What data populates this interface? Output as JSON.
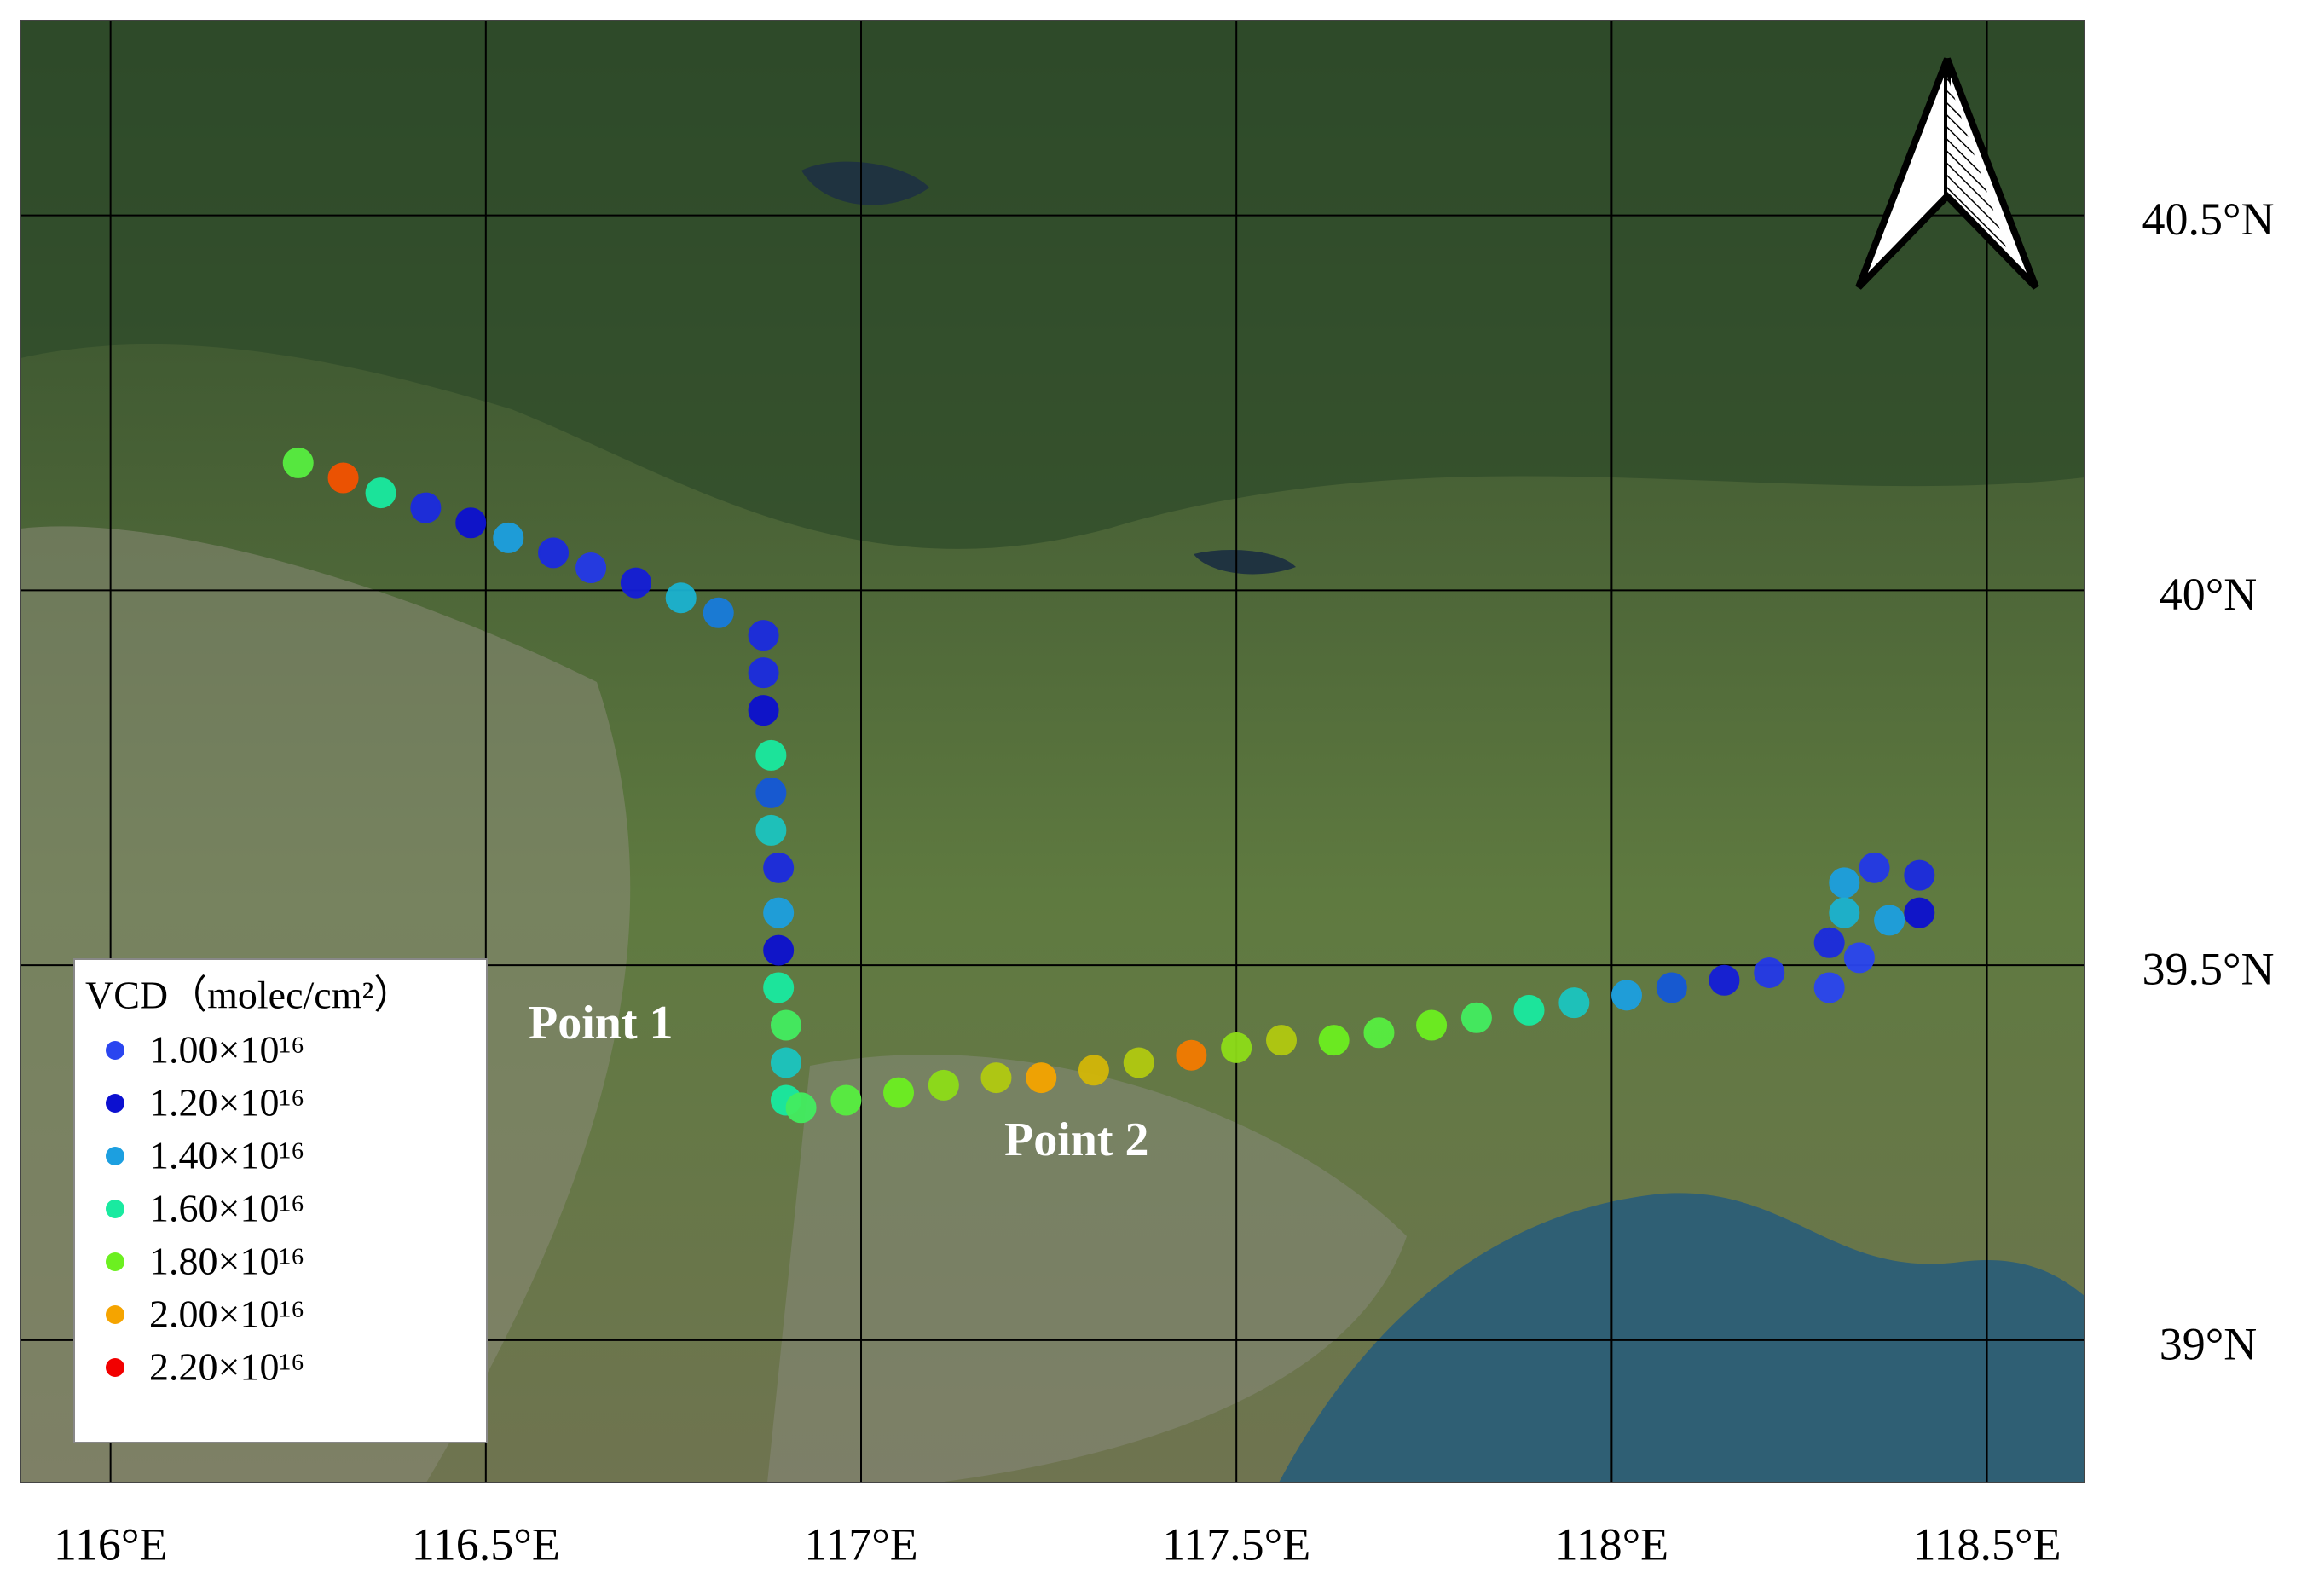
{
  "chart_data": {
    "type": "scatter",
    "x": [
      116.25,
      116.31,
      116.36,
      116.42,
      116.48,
      116.53,
      116.59,
      116.64,
      116.7,
      116.76,
      116.81,
      116.87,
      116.87,
      116.87,
      116.88,
      116.88,
      116.88,
      116.89,
      116.89,
      116.89,
      116.89,
      116.9,
      116.9,
      116.9,
      116.92,
      116.98,
      117.05,
      117.11,
      117.18,
      117.24,
      117.31,
      117.37,
      117.44,
      117.5,
      117.56,
      117.63,
      117.69,
      117.76,
      117.82,
      117.89,
      117.95,
      118.02,
      118.08,
      118.15,
      118.21,
      118.29,
      118.29,
      118.33,
      118.31,
      118.31,
      118.37,
      118.41,
      118.41,
      118.35
    ],
    "y": [
      40.17,
      40.15,
      40.13,
      40.11,
      40.09,
      40.07,
      40.05,
      40.03,
      40.01,
      39.99,
      39.97,
      39.94,
      39.89,
      39.84,
      39.78,
      39.73,
      39.68,
      39.63,
      39.57,
      39.52,
      39.47,
      39.42,
      39.37,
      39.32,
      39.31,
      39.32,
      39.33,
      39.34,
      39.35,
      39.35,
      39.36,
      39.37,
      39.38,
      39.39,
      39.4,
      39.4,
      39.41,
      39.42,
      39.43,
      39.44,
      39.45,
      39.46,
      39.47,
      39.48,
      39.49,
      39.53,
      39.47,
      39.51,
      39.61,
      39.57,
      39.56,
      39.57,
      39.62,
      39.63
    ],
    "values": [
      1.75e+16,
      2.1e+16,
      1.6e+16,
      1.1e+16,
      1.2e+16,
      1.4e+16,
      1.1e+16,
      1.05e+16,
      1.15e+16,
      1.45e+16,
      1.35e+16,
      1.1e+16,
      1.1e+16,
      1.2e+16,
      1.6e+16,
      1.3e+16,
      1.5e+16,
      1.1e+16,
      1.4e+16,
      1.2e+16,
      1.6e+16,
      1.7e+16,
      1.5e+16,
      1.6e+16,
      1.7e+16,
      1.75e+16,
      1.8e+16,
      1.85e+16,
      1.9e+16,
      2e+16,
      1.95e+16,
      1.9e+16,
      2.05e+16,
      1.85e+16,
      1.9e+16,
      1.8e+16,
      1.75e+16,
      1.8e+16,
      1.7e+16,
      1.6e+16,
      1.5e+16,
      1.4e+16,
      1.3e+16,
      1.15e+16,
      1.05e+16,
      1.1e+16,
      1e+16,
      1e+16,
      1.4e+16,
      1.45e+16,
      1.4e+16,
      1.2e+16,
      1.1e+16,
      1.05e+16
    ],
    "xlim": [
      115.88,
      118.63
    ],
    "ylim": [
      38.81,
      40.76
    ],
    "xticks": [
      {
        "value": 116,
        "label": "116°E"
      },
      {
        "value": 116.5,
        "label": "116.5°E"
      },
      {
        "value": 117,
        "label": "117°E"
      },
      {
        "value": 117.5,
        "label": "117.5°E"
      },
      {
        "value": 118,
        "label": "118°E"
      },
      {
        "value": 118.5,
        "label": "118.5°E"
      }
    ],
    "yticks": [
      {
        "value": 39,
        "label": "39°N"
      },
      {
        "value": 39.5,
        "label": "39.5°N"
      },
      {
        "value": 40,
        "label": "40°N"
      },
      {
        "value": 40.5,
        "label": "40.5°N"
      }
    ],
    "grid": true,
    "legend_title": "VCD（molec/cm²）",
    "legend": [
      {
        "value": 1e+16,
        "label": "1.00×10¹⁶",
        "color": "#2a45f0"
      },
      {
        "value": 1.2e+16,
        "label": "1.20×10¹⁶",
        "color": "#0c10d0"
      },
      {
        "value": 1.4e+16,
        "label": "1.40×10¹⁶",
        "color": "#1c9fe0"
      },
      {
        "value": 1.6e+16,
        "label": "1.60×10¹⁶",
        "color": "#19eaa0"
      },
      {
        "value": 1.8e+16,
        "label": "1.80×10¹⁶",
        "color": "#6cf020"
      },
      {
        "value": 2e+16,
        "label": "2.00×10¹⁶",
        "color": "#f5a400"
      },
      {
        "value": 2.2e+16,
        "label": "2.20×10¹⁶",
        "color": "#f20000"
      }
    ],
    "annotations": [
      "Point 1",
      "Point 2"
    ]
  }
}
